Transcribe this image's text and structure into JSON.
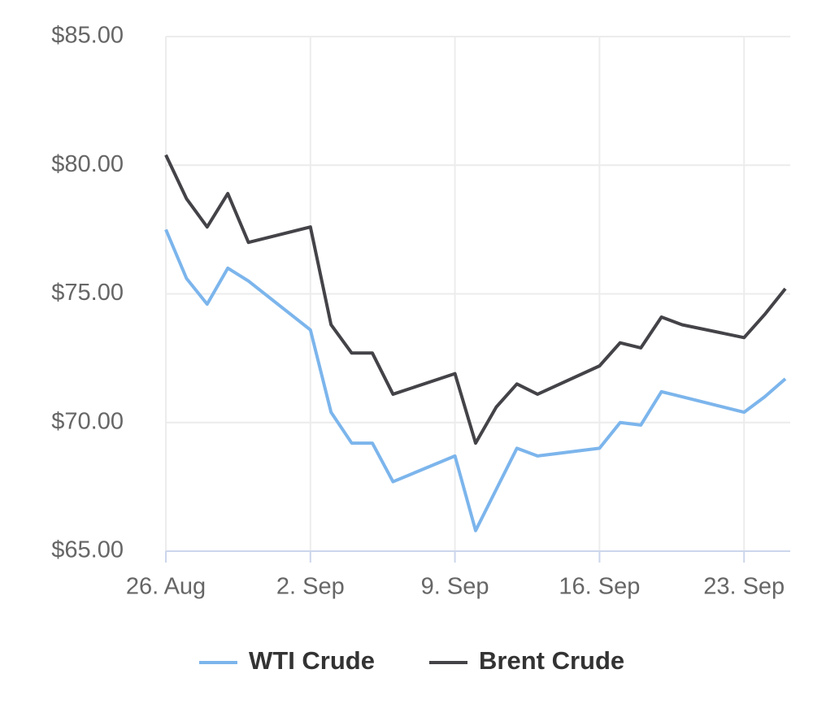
{
  "chart_data": {
    "type": "line",
    "x": [
      "26. Aug",
      "27. Aug",
      "28. Aug",
      "29. Aug",
      "30. Aug",
      "2. Sep",
      "3. Sep",
      "4. Sep",
      "5. Sep",
      "6. Sep",
      "9. Sep",
      "10. Sep",
      "11. Sep",
      "12. Sep",
      "13. Sep",
      "16. Sep",
      "17. Sep",
      "18. Sep",
      "19. Sep",
      "20. Sep",
      "23. Sep",
      "24. Sep",
      "25. Sep"
    ],
    "series": [
      {
        "name": "WTI Crude",
        "color": "#7cb5ec",
        "values": [
          77.5,
          75.6,
          74.6,
          76.0,
          75.5,
          73.6,
          70.4,
          69.2,
          69.2,
          67.7,
          68.7,
          65.8,
          67.4,
          69.0,
          68.7,
          69.0,
          70.0,
          69.9,
          71.2,
          71.0,
          70.4,
          71.0,
          71.7
        ]
      },
      {
        "name": "Brent Crude",
        "color": "#434348",
        "values": [
          80.4,
          78.7,
          77.6,
          78.9,
          77.0,
          77.6,
          73.8,
          72.7,
          72.7,
          71.1,
          71.9,
          69.2,
          70.6,
          71.5,
          71.1,
          72.2,
          73.1,
          72.9,
          74.1,
          73.8,
          73.3,
          74.2,
          75.2
        ]
      }
    ],
    "xlim": [
      "26. Aug",
      "25. Sep"
    ],
    "xticks": [
      "26. Aug",
      "2. Sep",
      "9. Sep",
      "16. Sep",
      "23. Sep"
    ],
    "ylim": [
      65,
      85
    ],
    "yticks": [
      {
        "value": 65,
        "label": "$65.00"
      },
      {
        "value": 70,
        "label": "$70.00"
      },
      {
        "value": 75,
        "label": "$75.00"
      },
      {
        "value": 80,
        "label": "$80.00"
      },
      {
        "value": 85,
        "label": "$85.00"
      }
    ],
    "grid": true
  }
}
